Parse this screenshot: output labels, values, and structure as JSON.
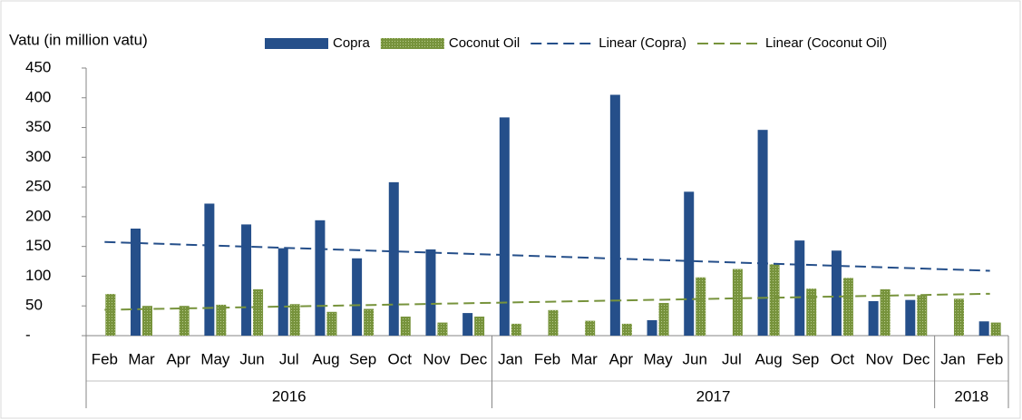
{
  "chart_data": {
    "type": "bar",
    "y_axis_label": "Vatu (in million vatu)",
    "groups": [
      {
        "label": "2016",
        "categories": [
          "Feb",
          "Mar",
          "Apr",
          "May",
          "Jun",
          "Jul",
          "Aug",
          "Sep",
          "Oct",
          "Nov",
          "Dec"
        ]
      },
      {
        "label": "2017",
        "categories": [
          "Jan",
          "Feb",
          "Mar",
          "Apr",
          "May",
          "Jun",
          "Jul",
          "Aug",
          "Sep",
          "Oct",
          "Nov",
          "Dec"
        ]
      },
      {
        "label": "2018",
        "categories": [
          "Jan",
          "Feb"
        ]
      }
    ],
    "series": [
      {
        "name": "Copra",
        "color": "#254f8a",
        "values": [
          0,
          180,
          0,
          222,
          187,
          147,
          194,
          130,
          258,
          145,
          38,
          367,
          0,
          0,
          405,
          26,
          242,
          0,
          346,
          160,
          143,
          58,
          60,
          0,
          24
        ]
      },
      {
        "name": "Coconut Oil",
        "color": "#77933c",
        "values": [
          70,
          50,
          50,
          52,
          78,
          53,
          40,
          45,
          32,
          22,
          32,
          20,
          43,
          25,
          20,
          55,
          98,
          112,
          120,
          79,
          97,
          78,
          68,
          62,
          22
        ]
      }
    ],
    "trendlines": [
      {
        "name": "Linear (Copra)",
        "series": 0,
        "color": "#254f8a"
      },
      {
        "name": "Linear (Coconut Oil)",
        "series": 1,
        "color": "#77933c"
      }
    ],
    "ylim": [
      0,
      450
    ],
    "yticks": [
      {
        "value": 0,
        "label": "-"
      },
      50,
      100,
      150,
      200,
      250,
      300,
      350,
      400,
      450
    ]
  }
}
